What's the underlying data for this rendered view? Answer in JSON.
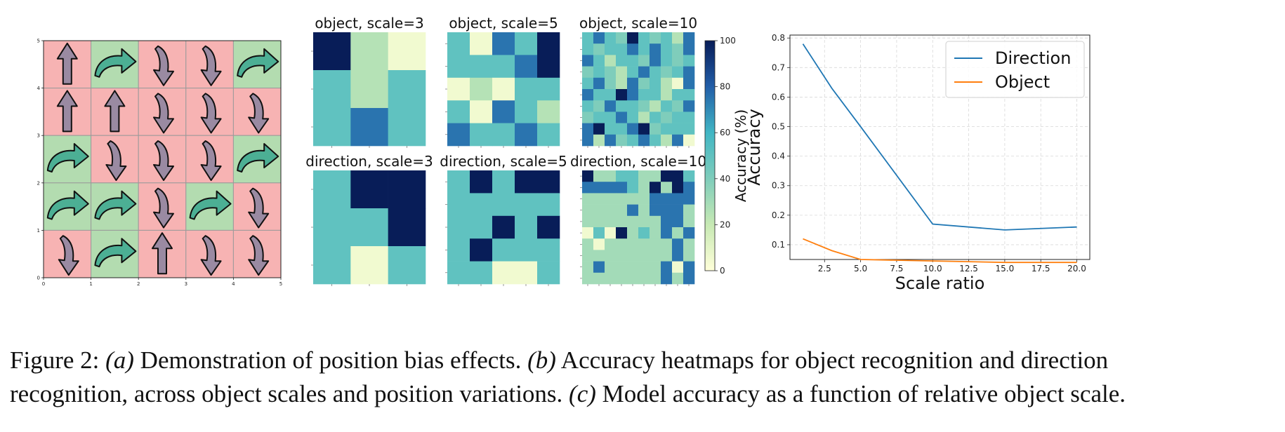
{
  "panel_a": {
    "x_ticks": [
      "0",
      "1",
      "2",
      "3",
      "4",
      "5"
    ],
    "y_ticks": [
      "0",
      "1",
      "2",
      "3",
      "4",
      "5"
    ],
    "colors": {
      "red": "#f7b3b3",
      "green": "#b3dcb0",
      "curved_arrow": "#4caf94",
      "straight_arrow": "#9a8aa2"
    },
    "cells_top_to_bottom": [
      [
        {
          "bg": "red",
          "arrow": "up"
        },
        {
          "bg": "green",
          "arrow": "curve"
        },
        {
          "bg": "red",
          "arrow": "down"
        },
        {
          "bg": "red",
          "arrow": "down"
        },
        {
          "bg": "green",
          "arrow": "curve"
        }
      ],
      [
        {
          "bg": "red",
          "arrow": "up"
        },
        {
          "bg": "red",
          "arrow": "up"
        },
        {
          "bg": "red",
          "arrow": "down"
        },
        {
          "bg": "red",
          "arrow": "down"
        },
        {
          "bg": "red",
          "arrow": "down"
        }
      ],
      [
        {
          "bg": "green",
          "arrow": "curve"
        },
        {
          "bg": "red",
          "arrow": "down"
        },
        {
          "bg": "red",
          "arrow": "down"
        },
        {
          "bg": "red",
          "arrow": "down"
        },
        {
          "bg": "green",
          "arrow": "curve"
        }
      ],
      [
        {
          "bg": "green",
          "arrow": "curve"
        },
        {
          "bg": "green",
          "arrow": "curve"
        },
        {
          "bg": "red",
          "arrow": "down"
        },
        {
          "bg": "green",
          "arrow": "curve"
        },
        {
          "bg": "red",
          "arrow": "down"
        }
      ],
      [
        {
          "bg": "red",
          "arrow": "down"
        },
        {
          "bg": "green",
          "arrow": "curve"
        },
        {
          "bg": "red",
          "arrow": "up"
        },
        {
          "bg": "red",
          "arrow": "down"
        },
        {
          "bg": "red",
          "arrow": "down"
        }
      ]
    ]
  },
  "heatmaps": {
    "palette": [
      "#ffffd9",
      "#c7e9b4",
      "#7fcdbb",
      "#41b6c4",
      "#225ea8",
      "#081d58"
    ],
    "colorbar": {
      "label": "Accuracy (%)",
      "ticks": [
        "0",
        "20",
        "40",
        "60",
        "80",
        "100"
      ]
    },
    "panels": [
      {
        "title": "object, scale=3",
        "grid": [
          [
            100,
            25,
            5
          ],
          [
            50,
            25,
            50
          ],
          [
            50,
            75,
            50
          ]
        ]
      },
      {
        "title": "object, scale=5",
        "grid": [
          [
            50,
            5,
            75,
            50,
            100
          ],
          [
            50,
            50,
            50,
            75,
            100
          ],
          [
            5,
            25,
            5,
            50,
            50
          ],
          [
            50,
            5,
            75,
            50,
            25
          ],
          [
            75,
            50,
            50,
            75,
            50
          ]
        ]
      },
      {
        "title": "object, scale=10",
        "grid": [
          [
            50,
            75,
            50,
            40,
            100,
            50,
            40,
            50,
            25,
            75
          ],
          [
            50,
            40,
            50,
            50,
            75,
            50,
            75,
            50,
            40,
            75
          ],
          [
            75,
            50,
            25,
            50,
            50,
            40,
            75,
            50,
            40,
            50
          ],
          [
            40,
            50,
            40,
            25,
            50,
            75,
            50,
            40,
            50,
            75
          ],
          [
            50,
            75,
            40,
            25,
            75,
            40,
            50,
            25,
            5,
            75
          ],
          [
            75,
            50,
            50,
            100,
            75,
            50,
            50,
            25,
            50,
            50
          ],
          [
            50,
            40,
            75,
            50,
            50,
            40,
            25,
            50,
            40,
            75
          ],
          [
            40,
            50,
            50,
            75,
            50,
            25,
            50,
            40,
            50,
            50
          ],
          [
            75,
            100,
            50,
            50,
            75,
            100,
            40,
            50,
            50,
            50
          ],
          [
            75,
            25,
            75,
            40,
            50,
            75,
            50,
            25,
            75,
            5
          ]
        ]
      },
      {
        "title": "direction, scale=3",
        "grid": [
          [
            50,
            100,
            100
          ],
          [
            50,
            50,
            100
          ],
          [
            50,
            5,
            50
          ]
        ]
      },
      {
        "title": "direction, scale=5",
        "grid": [
          [
            50,
            100,
            50,
            100,
            100
          ],
          [
            50,
            50,
            50,
            50,
            50
          ],
          [
            50,
            50,
            100,
            50,
            100
          ],
          [
            50,
            100,
            50,
            50,
            50
          ],
          [
            50,
            50,
            5,
            5,
            50
          ]
        ]
      },
      {
        "title": "direction, scale=10",
        "grid": [
          [
            100,
            30,
            30,
            50,
            50,
            30,
            30,
            100,
            100,
            50
          ],
          [
            75,
            75,
            75,
            75,
            50,
            30,
            100,
            30,
            100,
            75
          ],
          [
            30,
            30,
            30,
            30,
            30,
            30,
            75,
            75,
            75,
            75
          ],
          [
            30,
            30,
            30,
            30,
            75,
            30,
            75,
            75,
            75,
            30
          ],
          [
            30,
            30,
            30,
            30,
            30,
            30,
            30,
            75,
            75,
            30
          ],
          [
            5,
            50,
            5,
            100,
            30,
            50,
            30,
            75,
            30,
            75
          ],
          [
            30,
            5,
            30,
            30,
            30,
            30,
            30,
            30,
            75,
            30
          ],
          [
            30,
            30,
            30,
            30,
            30,
            30,
            30,
            30,
            75,
            30
          ],
          [
            30,
            75,
            30,
            30,
            30,
            30,
            30,
            75,
            5,
            75
          ],
          [
            30,
            30,
            30,
            30,
            30,
            30,
            30,
            75,
            30,
            75
          ]
        ]
      }
    ]
  },
  "chart_data": {
    "type": "line",
    "xlabel": "Scale ratio",
    "ylabel": "Accuracy",
    "xlim": [
      0.1,
      20.9
    ],
    "ylim": [
      0.05,
      0.81
    ],
    "x_ticks": [
      2.5,
      5.0,
      7.5,
      10.0,
      12.5,
      15.0,
      17.5,
      20.0
    ],
    "x_tick_labels": [
      "2.5",
      "5.0",
      "7.5",
      "10.0",
      "12.5",
      "15.0",
      "17.5",
      "20.0"
    ],
    "y_ticks": [
      0.1,
      0.2,
      0.3,
      0.4,
      0.5,
      0.6,
      0.7,
      0.8
    ],
    "y_tick_labels": [
      "0.1",
      "0.2",
      "0.3",
      "0.4",
      "0.5",
      "0.6",
      "0.7",
      "0.8"
    ],
    "grid": true,
    "legend_position": "top-right",
    "series": [
      {
        "name": "Direction",
        "color": "#1f77b4",
        "x": [
          1,
          3,
          5,
          10,
          15,
          20
        ],
        "y": [
          0.78,
          0.63,
          0.5,
          0.17,
          0.15,
          0.16
        ]
      },
      {
        "name": "Object",
        "color": "#ff7f0e",
        "x": [
          1,
          3,
          5,
          10,
          15,
          20
        ],
        "y": [
          0.12,
          0.08,
          0.05,
          0.045,
          0.04,
          0.04
        ]
      }
    ]
  },
  "caption": {
    "line1_fig": "Figure 2: ",
    "line1_a": "(a)",
    "line1_a_text": " Demonstration of position bias effects.  ",
    "line1_b": "(b)",
    "line1_b_text": " Accuracy heatmaps for object recognition and direction",
    "line2_text": "recognition, across object scales and position variations.  ",
    "line2_c": "(c)",
    "line2_c_text": " Model accuracy as a function of relative object scale."
  }
}
